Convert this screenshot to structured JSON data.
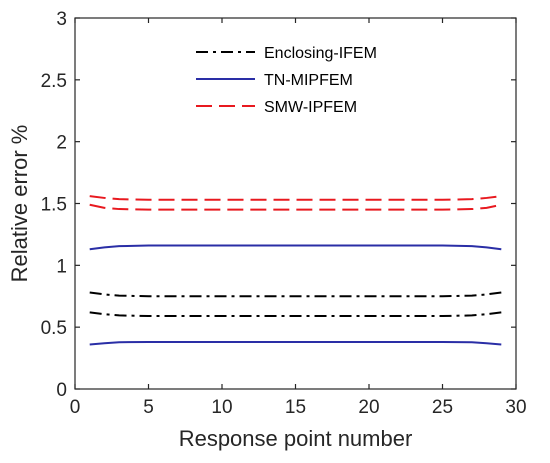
{
  "chart_data": {
    "type": "line",
    "xlabel": "Response point number",
    "ylabel": "Relative error %",
    "xlim": [
      0,
      30
    ],
    "ylim": [
      0,
      3
    ],
    "xticks": [
      "0",
      "5",
      "10",
      "15",
      "20",
      "25",
      "30"
    ],
    "yticks": [
      "0",
      "0.5",
      "1",
      "1.5",
      "2",
      "2.5",
      "3"
    ],
    "grid": false,
    "legend_position": "top-center",
    "series": [
      {
        "name": "Enclosing-IFEM",
        "color": "#000000",
        "style": "dash-dot",
        "bound": "upper",
        "x": [
          1,
          2,
          3,
          5,
          10,
          15,
          20,
          25,
          27,
          28,
          29
        ],
        "y": [
          0.78,
          0.765,
          0.755,
          0.75,
          0.75,
          0.75,
          0.75,
          0.75,
          0.755,
          0.765,
          0.78
        ]
      },
      {
        "name": "Enclosing-IFEM",
        "color": "#000000",
        "style": "dash-dot",
        "bound": "lower",
        "x": [
          1,
          2,
          3,
          5,
          10,
          15,
          20,
          25,
          27,
          28,
          29
        ],
        "y": [
          0.62,
          0.605,
          0.595,
          0.59,
          0.59,
          0.59,
          0.59,
          0.59,
          0.595,
          0.605,
          0.62
        ]
      },
      {
        "name": "TN-MIPFEM",
        "color": "#2a2ea6",
        "style": "solid",
        "bound": "upper",
        "x": [
          1,
          2,
          3,
          5,
          10,
          15,
          20,
          25,
          27,
          28,
          29
        ],
        "y": [
          1.13,
          1.145,
          1.155,
          1.16,
          1.16,
          1.16,
          1.16,
          1.16,
          1.155,
          1.145,
          1.13
        ]
      },
      {
        "name": "TN-MIPFEM",
        "color": "#2a2ea6",
        "style": "solid",
        "bound": "lower",
        "x": [
          1,
          2,
          3,
          5,
          10,
          15,
          20,
          25,
          27,
          28,
          29
        ],
        "y": [
          0.36,
          0.37,
          0.378,
          0.38,
          0.38,
          0.38,
          0.38,
          0.38,
          0.378,
          0.37,
          0.36
        ]
      },
      {
        "name": "SMW-IPFEM",
        "color": "#e8191f",
        "style": "dashed",
        "bound": "upper",
        "x": [
          1,
          2,
          3,
          5,
          10,
          15,
          20,
          25,
          27,
          28,
          29
        ],
        "y": [
          1.56,
          1.545,
          1.535,
          1.53,
          1.53,
          1.53,
          1.53,
          1.53,
          1.535,
          1.545,
          1.56
        ]
      },
      {
        "name": "SMW-IPFEM",
        "color": "#e8191f",
        "style": "dashed",
        "bound": "lower",
        "x": [
          1,
          2,
          3,
          5,
          10,
          15,
          20,
          25,
          27,
          28,
          29
        ],
        "y": [
          1.49,
          1.465,
          1.455,
          1.45,
          1.45,
          1.45,
          1.45,
          1.45,
          1.455,
          1.465,
          1.49
        ]
      }
    ],
    "legend": [
      "Enclosing-IFEM",
      "TN-MIPFEM",
      "SMW-IPFEM"
    ]
  }
}
